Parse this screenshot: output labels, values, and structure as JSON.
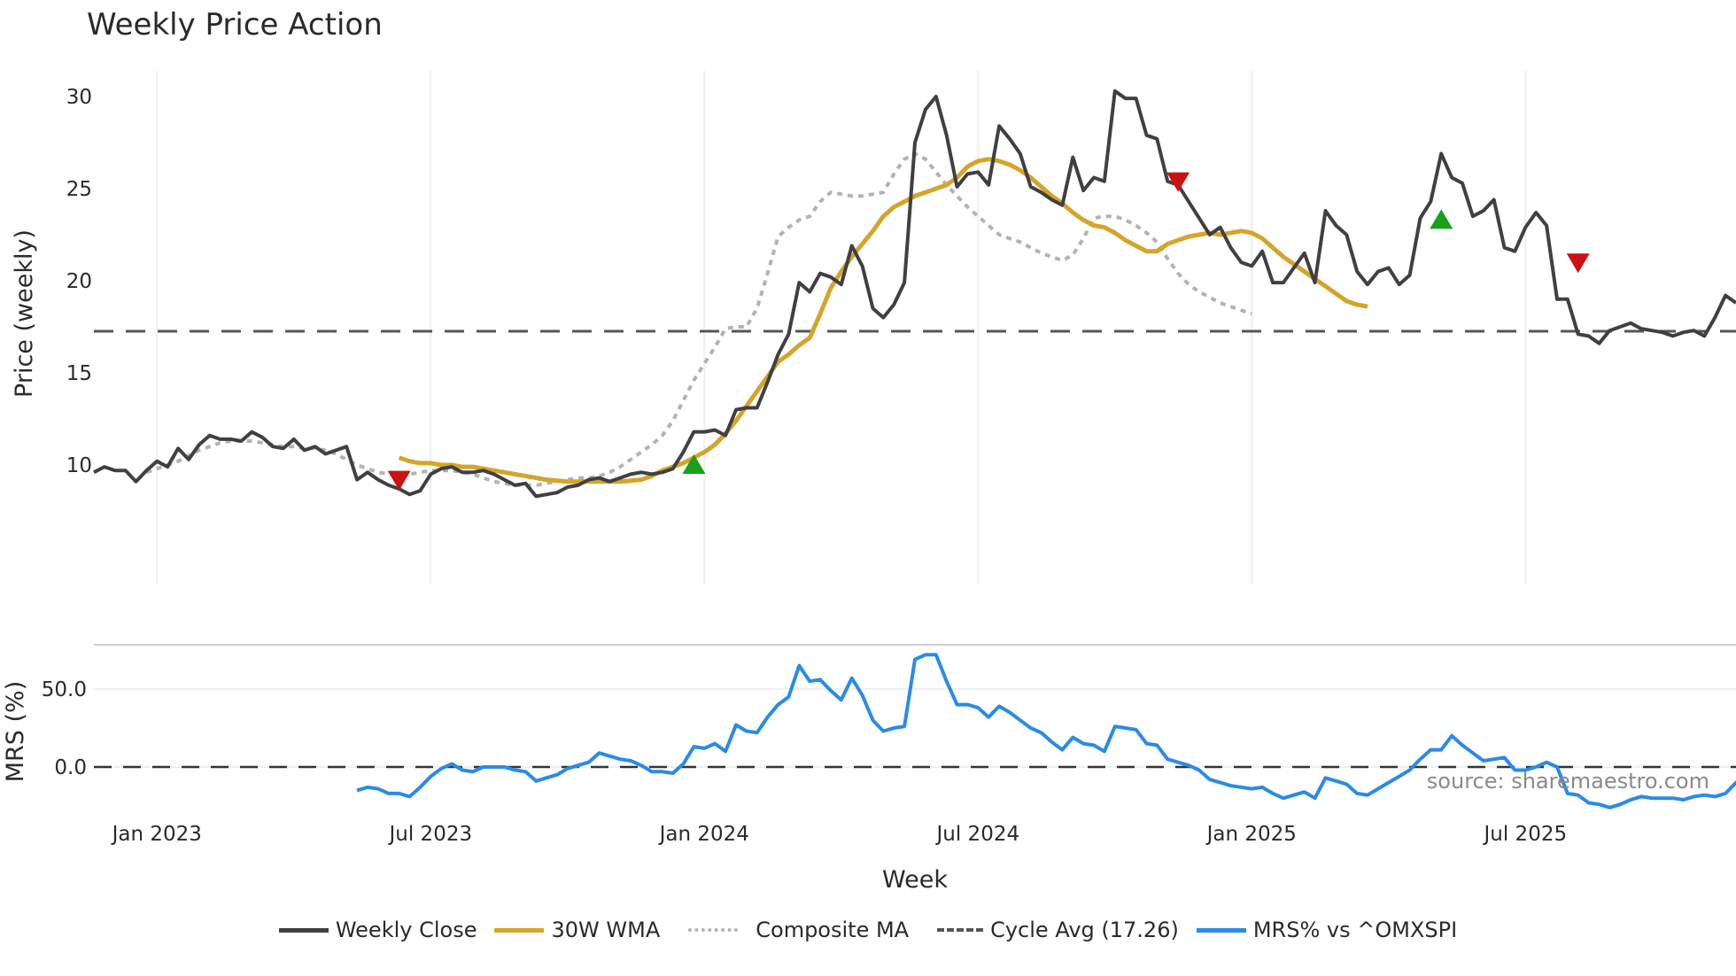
{
  "title": "Weekly Price Action",
  "watermark": "source: sharemaestro.com",
  "colors": {
    "weekly_close": "#404040",
    "wma": "#d4a52a",
    "composite": "#b3b3b3",
    "cycle_avg": "#555555",
    "mrs": "#2b8be6",
    "buy": "#1aa01a",
    "sell": "#cc1111",
    "grid": "#eceff3"
  },
  "axes": {
    "price_ylabel": "Price (weekly)",
    "mrs_ylabel": "MRS (%)",
    "xlabel": "Week",
    "price_ticks": [
      "10",
      "15",
      "20",
      "25",
      "30"
    ],
    "mrs_ticks": [
      "0.0",
      "50.0"
    ],
    "x_ticks": [
      "Jan 2023",
      "Jul 2023",
      "Jan 2024",
      "Jul 2024",
      "Jan 2025",
      "Jul 2025"
    ]
  },
  "legend": [
    {
      "label": "Weekly Close",
      "key": "weekly_close",
      "style": "solid"
    },
    {
      "label": "30W WMA",
      "key": "wma",
      "style": "solid"
    },
    {
      "label": "Composite MA",
      "key": "composite",
      "style": "dotted"
    },
    {
      "label": "Cycle Avg (17.26)",
      "key": "cycle_avg",
      "style": "dashed"
    },
    {
      "label": "MRS% vs ^OMXSPI",
      "key": "mrs",
      "style": "solid"
    }
  ],
  "chart_data": [
    {
      "type": "line",
      "title": "Weekly Price Action",
      "xlabel": "Week",
      "ylabel": "Price (weekly)",
      "ylim": [
        7.2,
        31.4
      ],
      "x_start_week": 0,
      "x_ticks": {
        "Jan 2023": 6,
        "Jul 2023": 32,
        "Jan 2024": 58,
        "Jul 2024": 84,
        "Jan 2025": 110,
        "Jul 2025": 136
      },
      "grid": true,
      "legend_position": "bottom",
      "series": [
        {
          "name": "Weekly Close",
          "start": 0,
          "values": [
            9.6,
            9.9,
            9.7,
            9.7,
            9.1,
            9.7,
            10.2,
            9.9,
            10.9,
            10.3,
            11.1,
            11.6,
            11.4,
            11.4,
            11.3,
            11.8,
            11.5,
            11.0,
            10.9,
            11.4,
            10.8,
            11.0,
            10.6,
            10.8,
            11.0,
            9.2,
            9.6,
            9.2,
            8.9,
            8.7,
            8.4,
            8.6,
            9.5,
            9.8,
            9.9,
            9.6,
            9.6,
            9.7,
            9.5,
            9.2,
            8.9,
            9.0,
            8.3,
            8.4,
            8.5,
            8.8,
            8.9,
            9.2,
            9.3,
            9.1,
            9.3,
            9.5,
            9.6,
            9.5,
            9.6,
            9.8,
            10.7,
            11.8,
            11.8,
            11.9,
            11.6,
            13.0,
            13.1,
            13.1,
            14.5,
            16.0,
            17.1,
            19.9,
            19.4,
            20.4,
            20.2,
            19.8,
            21.9,
            20.8,
            18.5,
            18.0,
            18.7,
            19.9,
            27.5,
            29.3,
            30.0,
            27.9,
            25.1,
            25.8,
            25.9,
            25.2,
            28.4,
            27.7,
            26.9,
            25.1,
            24.8,
            24.4,
            24.1,
            26.7,
            24.9,
            25.6,
            25.4,
            30.3,
            29.9,
            29.9,
            27.9,
            27.7,
            25.4,
            25.2,
            24.3,
            23.4,
            22.5,
            22.9,
            21.8,
            21.0,
            20.8,
            21.6,
            19.9,
            19.9,
            20.7,
            21.5,
            19.9,
            23.8,
            23.0,
            22.5,
            20.5,
            19.8,
            20.5,
            20.7,
            19.8,
            20.3,
            23.4,
            24.3,
            26.9,
            25.6,
            25.3,
            23.5,
            23.8,
            24.4,
            21.8,
            21.6,
            22.9,
            23.7,
            23.0,
            19.0,
            19.0,
            17.1,
            17.0,
            16.6,
            17.3,
            17.5,
            17.7,
            17.4,
            17.3,
            17.2,
            17.0,
            17.2,
            17.3,
            17.0,
            18.0,
            19.2,
            18.8
          ]
        },
        {
          "name": "30W WMA",
          "start": 29,
          "values": [
            10.4,
            10.2,
            10.1,
            10.1,
            10.0,
            10.0,
            9.9,
            9.9,
            9.8,
            9.7,
            9.6,
            9.5,
            9.4,
            9.3,
            9.2,
            9.15,
            9.1,
            9.1,
            9.1,
            9.1,
            9.1,
            9.1,
            9.15,
            9.2,
            9.4,
            9.7,
            9.9,
            10.1,
            10.4,
            10.7,
            11.1,
            11.7,
            12.4,
            13.2,
            14.0,
            14.8,
            15.6,
            16.0,
            16.5,
            16.9,
            18.2,
            19.6,
            20.5,
            21.3,
            22.0,
            22.7,
            23.5,
            24.0,
            24.3,
            24.6,
            24.8,
            25.0,
            25.2,
            25.6,
            26.2,
            26.5,
            26.6,
            26.5,
            26.3,
            26.0,
            25.6,
            25.1,
            24.6,
            24.2,
            23.7,
            23.3,
            23.0,
            22.9,
            22.6,
            22.2,
            21.9,
            21.6,
            21.6,
            22.0,
            22.2,
            22.4,
            22.5,
            22.6,
            22.5,
            22.6,
            22.7,
            22.6,
            22.3,
            21.8,
            21.3,
            20.9,
            20.5,
            20.1,
            19.7,
            19.3,
            18.9,
            18.7,
            18.6
          ]
        },
        {
          "name": "Composite MA",
          "start": 5,
          "values": [
            9.6,
            9.8,
            10.0,
            10.2,
            10.5,
            10.8,
            11.0,
            11.2,
            11.3,
            11.3,
            11.3,
            11.2,
            11.1,
            11.0,
            11.0,
            10.9,
            10.9,
            10.8,
            10.6,
            10.3,
            10.0,
            9.8,
            9.6,
            9.5,
            9.5,
            9.5,
            9.6,
            9.7,
            9.7,
            9.7,
            9.6,
            9.5,
            9.3,
            9.1,
            9.0,
            8.9,
            8.9,
            8.9,
            9.0,
            9.1,
            9.2,
            9.3,
            9.3,
            9.4,
            9.6,
            9.9,
            10.3,
            10.7,
            11.1,
            11.6,
            12.4,
            13.5,
            14.6,
            15.5,
            16.4,
            17.4,
            17.5,
            17.5,
            18.5,
            20.4,
            22.4,
            22.9,
            23.3,
            23.5,
            24.3,
            24.8,
            24.7,
            24.6,
            24.6,
            24.7,
            24.8,
            25.8,
            26.6,
            26.9,
            26.6,
            25.9,
            25.2,
            24.6,
            24.0,
            23.5,
            23.0,
            22.5,
            22.3,
            22.1,
            21.8,
            21.5,
            21.3,
            21.1,
            21.4,
            22.3,
            23.4,
            23.5,
            23.5,
            23.3,
            23.0,
            22.6,
            22.1,
            21.2,
            20.4,
            19.8,
            19.4,
            19.1,
            18.8,
            18.6,
            18.4,
            18.2
          ]
        },
        {
          "name": "Cycle Avg (17.26)",
          "constant": 17.26
        }
      ],
      "markers": [
        {
          "type": "sell",
          "week": 29,
          "value": 9.2
        },
        {
          "type": "buy",
          "week": 57,
          "value": 10.0
        },
        {
          "type": "sell",
          "week": 103,
          "value": 25.4
        },
        {
          "type": "buy",
          "week": 128,
          "value": 23.3
        },
        {
          "type": "sell",
          "week": 141,
          "value": 21.0
        }
      ]
    },
    {
      "type": "line",
      "title": "",
      "xlabel": "Week",
      "ylabel": "MRS (%)",
      "ylim": [
        -30,
        78
      ],
      "grid": true,
      "series": [
        {
          "name": "MRS% vs ^OMXSPI",
          "start": 25,
          "values": [
            -15,
            -13,
            -14,
            -17,
            -17,
            -19,
            -13,
            -6,
            -1,
            2,
            -2,
            -3,
            0,
            0,
            0,
            -2,
            -3,
            -9,
            -7,
            -5,
            -1,
            1,
            3,
            9,
            7,
            5,
            4,
            1,
            -3,
            -3,
            -4,
            2,
            13,
            12,
            15,
            10,
            27,
            23,
            22,
            32,
            40,
            45,
            65,
            55,
            56,
            49,
            43,
            57,
            46,
            30,
            23,
            25,
            26,
            69,
            72,
            72,
            55,
            40,
            40,
            38,
            32,
            39,
            35,
            30,
            25,
            22,
            16,
            11,
            19,
            15,
            14,
            10,
            26,
            25,
            24,
            15,
            14,
            5,
            3,
            1,
            -2,
            -8,
            -10,
            -12,
            -13,
            -14,
            -13,
            -17,
            -20,
            -18,
            -16,
            -20,
            -7,
            -9,
            -11,
            -17,
            -18,
            -14,
            -10,
            -6,
            -2,
            5,
            11,
            11,
            20,
            14,
            9,
            4,
            5,
            6,
            -2,
            -2,
            0,
            3,
            0,
            -17,
            -18,
            -23,
            -24,
            -26,
            -24,
            -21,
            -19,
            -20,
            -20,
            -20,
            -21,
            -19,
            -18,
            -19,
            -17,
            -10,
            -12
          ]
        }
      ]
    }
  ]
}
